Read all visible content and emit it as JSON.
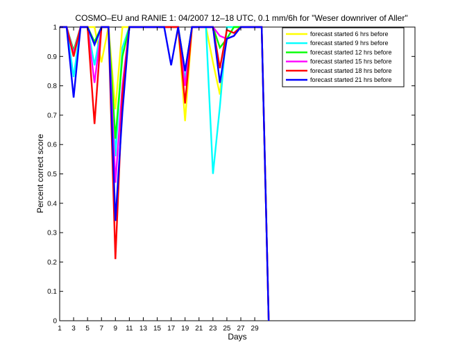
{
  "chart_data": {
    "type": "line",
    "title": "COSMO–EU and RANIE 1: 04/2007 12–18 UTC, 0.1 mm/6h for \"Weser downriver of Aller\"",
    "xlabel": "Days",
    "ylabel": "Percent correct score",
    "xlim": [
      1,
      52
    ],
    "ylim": [
      0,
      1
    ],
    "xticks": [
      1,
      3,
      5,
      7,
      9,
      11,
      13,
      15,
      17,
      19,
      21,
      23,
      25,
      27,
      29
    ],
    "xtick_labels": [
      "1",
      "3",
      "5",
      "7",
      "9",
      "11",
      "13",
      "15",
      "17",
      "19",
      "21",
      "23",
      "25",
      "27",
      "29"
    ],
    "yticks": [
      0,
      0.1,
      0.2,
      0.3,
      0.4,
      0.5,
      0.6,
      0.7,
      0.8,
      0.9,
      1
    ],
    "ytick_labels": [
      "0",
      "0.1",
      "0.2",
      "0.3",
      "0.4",
      "0.5",
      "0.6",
      "0.7",
      "0.8",
      "0.9",
      "1"
    ],
    "grid": false,
    "legend_position": "top-right",
    "x": [
      1,
      2,
      3,
      4,
      5,
      6,
      7,
      8,
      9,
      10,
      11,
      12,
      13,
      14,
      15,
      16,
      17,
      18,
      19,
      20,
      21,
      22,
      23,
      24,
      25,
      26,
      27,
      28,
      29,
      30,
      31
    ],
    "series": [
      {
        "name": "forecast started 6 hrs before",
        "color": "#ffff00",
        "values": [
          1,
          1,
          0.9,
          1,
          1,
          1,
          0.88,
          1,
          0.72,
          1,
          1,
          1,
          1,
          1,
          1,
          1,
          1,
          1,
          0.68,
          1,
          1,
          1,
          0.88,
          0.77,
          1,
          1,
          1,
          1,
          1,
          1,
          0
        ]
      },
      {
        "name": "forecast started 9 hrs before",
        "color": "#00ffff",
        "values": [
          1,
          1,
          0.83,
          1,
          1,
          0.87,
          1,
          1,
          0.56,
          0.93,
          1,
          1,
          1,
          1,
          1,
          1,
          1,
          1,
          0.82,
          1,
          1,
          1,
          0.5,
          0.73,
          1,
          1,
          1,
          1,
          1,
          1,
          0
        ]
      },
      {
        "name": "forecast started 12 hrs before",
        "color": "#00ff00",
        "values": [
          1,
          1,
          0.92,
          1,
          1,
          0.95,
          1,
          1,
          0.62,
          0.9,
          1,
          1,
          1,
          1,
          1,
          1,
          1,
          1,
          0.85,
          1,
          1,
          1,
          1,
          0.93,
          0.96,
          1,
          1,
          1,
          1,
          1,
          0
        ]
      },
      {
        "name": "forecast started 15 hrs before",
        "color": "#ff00ff",
        "values": [
          1,
          1,
          0.91,
          1,
          1,
          0.81,
          1,
          1,
          0.47,
          0.8,
          1,
          1,
          1,
          1,
          1,
          1,
          1,
          1,
          0.8,
          1,
          1,
          1,
          1,
          0.97,
          0.96,
          0.97,
          1,
          1,
          1,
          1,
          0
        ]
      },
      {
        "name": "forecast started 18 hrs before",
        "color": "#ff0000",
        "values": [
          1,
          1,
          0.9,
          1,
          1,
          0.67,
          1,
          1,
          0.21,
          0.77,
          1,
          1,
          1,
          1,
          1,
          1,
          1,
          1,
          0.74,
          1,
          1,
          1,
          1,
          0.86,
          0.99,
          0.98,
          1,
          1,
          1,
          1,
          0
        ]
      },
      {
        "name": "forecast started 21 hrs before",
        "color": "#0000ff",
        "values": [
          1,
          1,
          0.76,
          1,
          1,
          0.94,
          1,
          1,
          0.34,
          0.71,
          1,
          1,
          1,
          1,
          1,
          1,
          0.87,
          1,
          0.85,
          1,
          1,
          1,
          1,
          0.81,
          0.96,
          0.97,
          1,
          1,
          1,
          1,
          0
        ]
      }
    ]
  }
}
